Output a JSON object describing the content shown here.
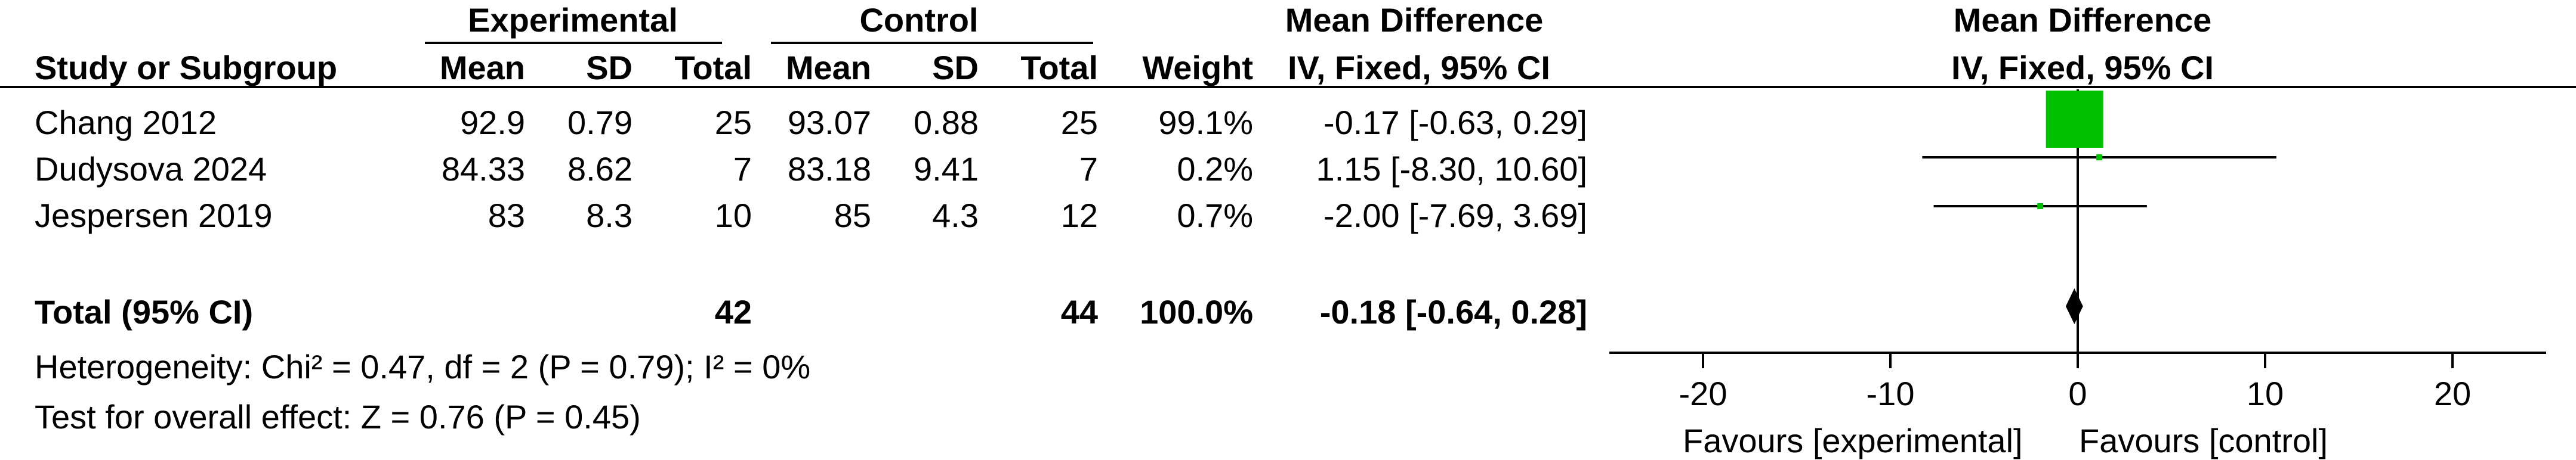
{
  "table": {
    "group_headers": {
      "experimental": "Experimental",
      "control": "Control",
      "mean_difference": "Mean Difference"
    },
    "columns": {
      "study": "Study or Subgroup",
      "exp_mean": "Mean",
      "exp_sd": "SD",
      "exp_total": "Total",
      "ctl_mean": "Mean",
      "ctl_sd": "SD",
      "ctl_total": "Total",
      "weight": "Weight",
      "md": "IV, Fixed, 95% CI"
    },
    "rows": [
      {
        "study": "Chang 2012",
        "exp_mean": "92.9",
        "exp_sd": "0.79",
        "exp_total": "25",
        "ctl_mean": "93.07",
        "ctl_sd": "0.88",
        "ctl_total": "25",
        "weight": "99.1%",
        "md": "-0.17 [-0.63, 0.29]"
      },
      {
        "study": "Dudysova 2024",
        "exp_mean": "84.33",
        "exp_sd": "8.62",
        "exp_total": "7",
        "ctl_mean": "83.18",
        "ctl_sd": "9.41",
        "ctl_total": "7",
        "weight": "0.2%",
        "md": "1.15 [-8.30, 10.60]"
      },
      {
        "study": "Jespersen 2019",
        "exp_mean": "83",
        "exp_sd": "8.3",
        "exp_total": "10",
        "ctl_mean": "85",
        "ctl_sd": "4.3",
        "ctl_total": "12",
        "weight": "0.7%",
        "md": "-2.00 [-7.69, 3.69]"
      }
    ],
    "total": {
      "label": "Total (95% CI)",
      "exp_total": "42",
      "ctl_total": "44",
      "weight": "100.0%",
      "md": "-0.18 [-0.64, 0.28]"
    },
    "heterogeneity": "Heterogeneity: Chi² = 0.47, df = 2 (P = 0.79); I² = 0%",
    "overall_effect": "Test for overall effect: Z = 0.76 (P = 0.45)"
  },
  "chart_data": {
    "type": "forest",
    "title": "Mean Difference",
    "subtitle": "IV, Fixed, 95% CI",
    "x_range": [
      -25,
      25
    ],
    "x_ticks": [
      -20,
      -10,
      0,
      10,
      20
    ],
    "x_tick_labels": [
      "-20",
      "-10",
      "0",
      "10",
      "20"
    ],
    "favours_left": "Favours [experimental]",
    "favours_right": "Favours [control]",
    "marker_color": "#00c000",
    "studies": [
      {
        "name": "Chang 2012",
        "estimate": -0.17,
        "ci_low": -0.63,
        "ci_high": 0.29,
        "weight": 99.1
      },
      {
        "name": "Dudysova 2024",
        "estimate": 1.15,
        "ci_low": -8.3,
        "ci_high": 10.6,
        "weight": 0.2
      },
      {
        "name": "Jespersen 2019",
        "estimate": -2.0,
        "ci_low": -7.69,
        "ci_high": 3.69,
        "weight": 0.7
      }
    ],
    "pooled": {
      "estimate": -0.18,
      "ci_low": -0.64,
      "ci_high": 0.28
    }
  }
}
